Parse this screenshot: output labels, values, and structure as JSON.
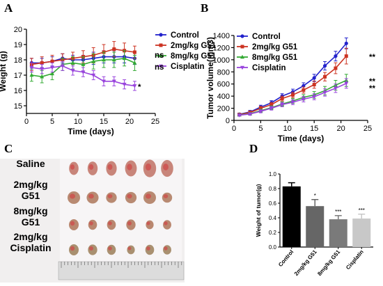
{
  "panels": {
    "a": "A",
    "b": "B",
    "c": "C",
    "d": "D"
  },
  "colors": {
    "control": "#2222cc",
    "g51_low": "#cc3322",
    "g51_high": "#33aa33",
    "cisplatin": "#9944dd",
    "bar_control": "#000000",
    "bar_low": "#666666",
    "bar_high": "#7a7a7a",
    "bar_cis": "#c8c8c8"
  },
  "chart_data": [
    {
      "panel": "A",
      "type": "line",
      "xlabel": "Time (days)",
      "ylabel": "Weight (g)",
      "xlim": [
        0,
        25
      ],
      "ylim": [
        14.5,
        20
      ],
      "xticks": [
        "0",
        "5",
        "10",
        "15",
        "20",
        "25"
      ],
      "yticks": [
        "15",
        "16",
        "17",
        "18",
        "19",
        "20"
      ],
      "x": [
        1,
        3,
        5,
        7,
        9,
        11,
        13,
        15,
        17,
        19,
        21
      ],
      "series": [
        {
          "name": "Control",
          "values": [
            17.8,
            17.8,
            17.9,
            18.1,
            18.0,
            18.0,
            18.1,
            18.2,
            18.2,
            18.2,
            18.1
          ],
          "errors": [
            0.3,
            0.3,
            0.3,
            0.3,
            0.3,
            0.3,
            0.4,
            0.4,
            0.4,
            0.4,
            0.4
          ]
        },
        {
          "name": "2mg/kg G51",
          "values": [
            17.7,
            17.8,
            17.9,
            18.0,
            18.1,
            18.2,
            18.3,
            18.5,
            18.7,
            18.6,
            18.5
          ],
          "errors": [
            0.4,
            0.4,
            0.4,
            0.4,
            0.4,
            0.4,
            0.5,
            0.5,
            0.5,
            0.5,
            0.4
          ]
        },
        {
          "name": "8mg/kg G51",
          "values": [
            17.0,
            16.9,
            17.1,
            17.7,
            17.8,
            17.7,
            17.9,
            18.0,
            18.0,
            18.1,
            17.8
          ],
          "errors": [
            0.4,
            0.4,
            0.4,
            0.4,
            0.4,
            0.5,
            0.5,
            0.5,
            0.5,
            0.5,
            0.5
          ]
        },
        {
          "name": "Cisplatin",
          "values": [
            17.5,
            17.4,
            17.5,
            17.6,
            17.3,
            17.2,
            17.0,
            16.6,
            16.6,
            16.4,
            16.3
          ],
          "errors": [
            0.3,
            0.3,
            0.3,
            0.3,
            0.3,
            0.3,
            0.3,
            0.3,
            0.3,
            0.3,
            0.3
          ]
        }
      ],
      "annotations": [
        "ns",
        "ns",
        "*"
      ]
    },
    {
      "panel": "B",
      "type": "line",
      "xlabel": "Time (days)",
      "ylabel": "Tumor volume(mm3)",
      "xlim": [
        0,
        25
      ],
      "ylim": [
        0,
        1400
      ],
      "xticks": [
        "0",
        "5",
        "10",
        "15",
        "20",
        "25"
      ],
      "yticks": [
        "0",
        "200",
        "400",
        "600",
        "800",
        "1000",
        "1200",
        "1400"
      ],
      "x": [
        1,
        3,
        5,
        7,
        9,
        11,
        13,
        15,
        17,
        19,
        21
      ],
      "series": [
        {
          "name": "Control",
          "values": [
            100,
            140,
            220,
            290,
            400,
            470,
            570,
            700,
            900,
            1060,
            1270
          ],
          "errors": [
            20,
            25,
            30,
            35,
            40,
            45,
            50,
            60,
            70,
            80,
            90
          ]
        },
        {
          "name": "2mg/kg G51",
          "values": [
            95,
            130,
            200,
            260,
            360,
            420,
            500,
            590,
            720,
            860,
            1060
          ],
          "errors": [
            20,
            25,
            30,
            35,
            40,
            45,
            50,
            60,
            70,
            90,
            130
          ]
        },
        {
          "name": "8mg/kg G51",
          "values": [
            90,
            110,
            160,
            210,
            270,
            320,
            380,
            420,
            490,
            580,
            660
          ],
          "errors": [
            15,
            20,
            25,
            30,
            35,
            40,
            45,
            55,
            70,
            80,
            100
          ]
        },
        {
          "name": "Cisplatin",
          "values": [
            85,
            105,
            150,
            200,
            260,
            300,
            350,
            390,
            460,
            530,
            610
          ],
          "errors": [
            15,
            20,
            25,
            30,
            35,
            40,
            45,
            50,
            60,
            70,
            80
          ]
        }
      ],
      "annotations": [
        "**",
        "**",
        "**"
      ]
    },
    {
      "panel": "D",
      "type": "bar",
      "ylabel": "Weight of tumor(g)",
      "ylim": [
        0,
        1.0
      ],
      "yticks": [
        "0.0",
        "0.2",
        "0.4",
        "0.6",
        "0.8",
        "1.0"
      ],
      "categories": [
        "Control",
        "2mg/kg G51",
        "8mg/kg G51",
        "Cisplatin"
      ],
      "values": [
        0.83,
        0.56,
        0.38,
        0.39
      ],
      "errors": [
        0.05,
        0.09,
        0.05,
        0.06
      ],
      "annotations": [
        "",
        "*",
        "***",
        "***"
      ]
    }
  ],
  "photo": {
    "rows": [
      "Saline",
      "2mg/kg G51",
      "8mg/kg G51",
      "2mg/kg Cisplatin"
    ],
    "row_label_lines": [
      [
        "Saline"
      ],
      [
        "2mg/kg",
        "G51"
      ],
      [
        "8mg/kg",
        "G51"
      ],
      [
        "2mg/kg",
        "Cisplatin"
      ]
    ]
  }
}
